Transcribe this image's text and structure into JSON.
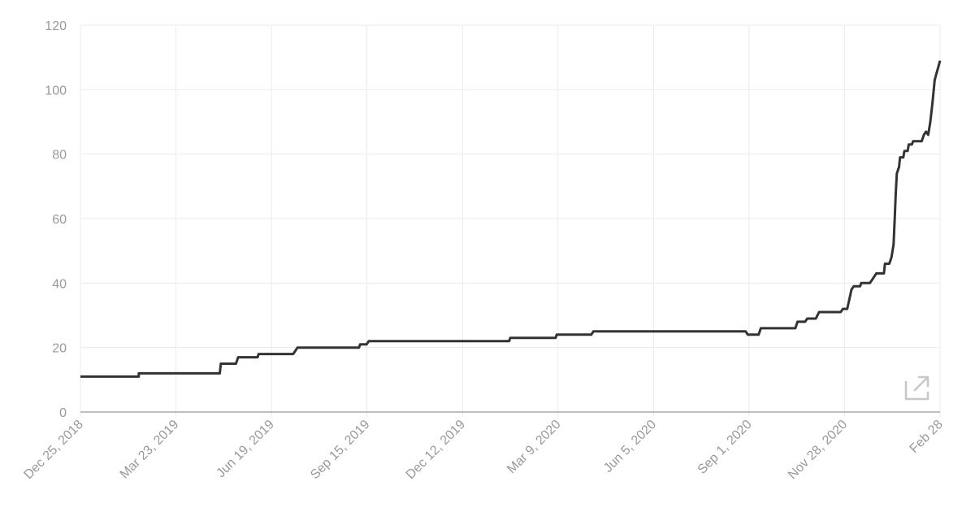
{
  "chart_data": {
    "type": "line",
    "title": "",
    "xlabel": "",
    "ylabel": "",
    "ylim": [
      0,
      120
    ],
    "yticks": [
      "0",
      "20",
      "40",
      "60",
      "80",
      "100",
      "120"
    ],
    "xticks": [
      "Dec 25, 2018",
      "Mar 23, 2019",
      "Jun 19, 2019",
      "Sep 15, 2019",
      "Dec 12, 2019",
      "Mar 9, 2020",
      "Jun 5, 2020",
      "Sep 1, 2020",
      "Nov 28, 2020",
      "Feb 28"
    ],
    "x_range": [
      "2018-12-25",
      "2021-02-28"
    ],
    "grid": true,
    "legend": "none",
    "series": [
      {
        "color": "#333333",
        "points": [
          [
            "2018-12-25",
            11
          ],
          [
            "2019-02-17",
            11
          ],
          [
            "2019-02-17",
            12
          ],
          [
            "2019-05-03",
            12
          ],
          [
            "2019-05-04",
            15
          ],
          [
            "2019-05-18",
            15
          ],
          [
            "2019-05-20",
            17
          ],
          [
            "2019-06-07",
            17
          ],
          [
            "2019-06-08",
            18
          ],
          [
            "2019-07-10",
            18
          ],
          [
            "2019-07-14",
            20
          ],
          [
            "2019-09-09",
            20
          ],
          [
            "2019-09-10",
            21
          ],
          [
            "2019-09-16",
            21
          ],
          [
            "2019-09-18",
            22
          ],
          [
            "2020-01-26",
            22
          ],
          [
            "2020-01-27",
            23
          ],
          [
            "2020-03-09",
            23
          ],
          [
            "2020-03-10",
            24
          ],
          [
            "2020-04-11",
            24
          ],
          [
            "2020-04-13",
            25
          ],
          [
            "2020-09-01",
            25
          ],
          [
            "2020-09-03",
            24
          ],
          [
            "2020-09-13",
            24
          ],
          [
            "2020-09-15",
            26
          ],
          [
            "2020-10-17",
            26
          ],
          [
            "2020-10-19",
            28
          ],
          [
            "2020-10-26",
            28
          ],
          [
            "2020-10-28",
            29
          ],
          [
            "2020-11-05",
            29
          ],
          [
            "2020-11-08",
            31
          ],
          [
            "2020-11-28",
            31
          ],
          [
            "2020-11-30",
            32
          ],
          [
            "2020-12-04",
            32
          ],
          [
            "2020-12-06",
            35
          ],
          [
            "2020-12-08",
            38
          ],
          [
            "2020-12-10",
            39
          ],
          [
            "2020-12-16",
            39
          ],
          [
            "2020-12-17",
            40
          ],
          [
            "2020-12-25",
            40
          ],
          [
            "2020-12-27",
            41
          ],
          [
            "2020-12-29",
            42
          ],
          [
            "2020-12-31",
            43
          ],
          [
            "2021-01-07",
            43
          ],
          [
            "2021-01-08",
            46
          ],
          [
            "2021-01-12",
            46
          ],
          [
            "2021-01-14",
            48
          ],
          [
            "2021-01-16",
            52
          ],
          [
            "2021-01-17",
            60
          ],
          [
            "2021-01-18",
            68
          ],
          [
            "2021-01-19",
            74
          ],
          [
            "2021-01-21",
            76
          ],
          [
            "2021-01-22",
            79
          ],
          [
            "2021-01-25",
            79
          ],
          [
            "2021-01-26",
            81
          ],
          [
            "2021-01-29",
            81
          ],
          [
            "2021-01-30",
            83
          ],
          [
            "2021-02-02",
            83
          ],
          [
            "2021-02-03",
            84
          ],
          [
            "2021-02-11",
            84
          ],
          [
            "2021-02-13",
            86
          ],
          [
            "2021-02-15",
            87
          ],
          [
            "2021-02-17",
            86
          ],
          [
            "2021-02-19",
            90
          ],
          [
            "2021-02-21",
            96
          ],
          [
            "2021-02-23",
            103
          ],
          [
            "2021-02-28",
            109
          ]
        ]
      }
    ]
  },
  "icons": {
    "expand": "external-link-icon",
    "expand_color": "#c8c8c8"
  }
}
